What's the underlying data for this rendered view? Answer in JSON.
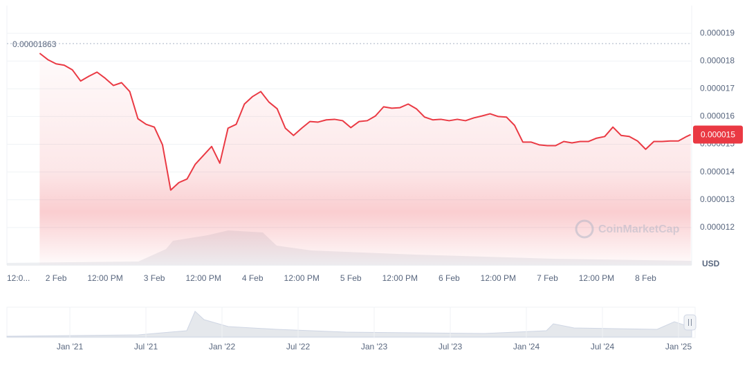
{
  "chart_data": {
    "type": "line",
    "currency_label": "USD",
    "watermark": "CoinMarketCap",
    "max_value": 1.863e-05,
    "current_price_label": "0.000015",
    "x": [
      -4,
      -2,
      0,
      2,
      4,
      6,
      8,
      10,
      12,
      14,
      16,
      18,
      20,
      22,
      24,
      26,
      28,
      30,
      32,
      34,
      36,
      38,
      40,
      42,
      44,
      46,
      48,
      50,
      52,
      54,
      56,
      58,
      60,
      62,
      64,
      66,
      68,
      70,
      72,
      74,
      76,
      78,
      80,
      82,
      84,
      86,
      88,
      90,
      92,
      94,
      96,
      98,
      100,
      102,
      104,
      106,
      108,
      110,
      112,
      114,
      116,
      118,
      120,
      122,
      124,
      126,
      128,
      130,
      132,
      134,
      136,
      138,
      140,
      142,
      144,
      146,
      148,
      150,
      152,
      154,
      155
    ],
    "series": [
      {
        "color": "#ea3943",
        "values": [
          1.828e-05,
          1.805e-05,
          1.79e-05,
          1.785e-05,
          1.768e-05,
          1.728e-05,
          1.745e-05,
          1.76e-05,
          1.738e-05,
          1.712e-05,
          1.722e-05,
          1.69e-05,
          1.592e-05,
          1.572e-05,
          1.562e-05,
          1.498e-05,
          1.335e-05,
          1.362e-05,
          1.375e-05,
          1.428e-05,
          1.46e-05,
          1.492e-05,
          1.432e-05,
          1.558e-05,
          1.572e-05,
          1.645e-05,
          1.672e-05,
          1.69e-05,
          1.652e-05,
          1.628e-05,
          1.558e-05,
          1.532e-05,
          1.558e-05,
          1.582e-05,
          1.58e-05,
          1.588e-05,
          1.59e-05,
          1.585e-05,
          1.56e-05,
          1.582e-05,
          1.585e-05,
          1.602e-05,
          1.635e-05,
          1.63e-05,
          1.632e-05,
          1.645e-05,
          1.628e-05,
          1.598e-05,
          1.588e-05,
          1.59e-05,
          1.585e-05,
          1.59e-05,
          1.585e-05,
          1.595e-05,
          1.602e-05,
          1.61e-05,
          1.6e-05,
          1.598e-05,
          1.568e-05,
          1.508e-05,
          1.508e-05,
          1.498e-05,
          1.495e-05,
          1.495e-05,
          1.51e-05,
          1.505e-05,
          1.51e-05,
          1.51e-05,
          1.522e-05,
          1.528e-05,
          1.562e-05,
          1.532e-05,
          1.528e-05,
          1.512e-05,
          1.482e-05,
          1.51e-05,
          1.51e-05,
          1.512e-05,
          1.512e-05,
          1.528e-05,
          1.535e-05
        ]
      }
    ],
    "xlim": [
      -12,
      155
    ],
    "xticks": [
      {
        "value": -12,
        "label": "12:0..."
      },
      {
        "value": 0,
        "label": "2 Feb"
      },
      {
        "value": 12,
        "label": "12:00 PM"
      },
      {
        "value": 24,
        "label": "3 Feb"
      },
      {
        "value": 36,
        "label": "12:00 PM"
      },
      {
        "value": 48,
        "label": "4 Feb"
      },
      {
        "value": 60,
        "label": "12:00 PM"
      },
      {
        "value": 72,
        "label": "5 Feb"
      },
      {
        "value": 84,
        "label": "12:00 PM"
      },
      {
        "value": 96,
        "label": "6 Feb"
      },
      {
        "value": 108,
        "label": "12:00 PM"
      },
      {
        "value": 120,
        "label": "7 Feb"
      },
      {
        "value": 132,
        "label": "12:00 PM"
      },
      {
        "value": 144,
        "label": "8 Feb"
      }
    ],
    "ylim": [
      1.065e-05,
      2e-05
    ],
    "yticks": [
      1.2e-05,
      1.3e-05,
      1.4e-05,
      1.5e-05,
      1.6e-05,
      1.7e-05,
      1.8e-05,
      1.9e-05
    ],
    "grid": true,
    "navigator_labels": [
      "Jan '21",
      "Jul '21",
      "Jan '22",
      "Jul '22",
      "Jan '23",
      "Jul '23",
      "Jan '24",
      "Jul '24",
      "Jan '25"
    ]
  }
}
